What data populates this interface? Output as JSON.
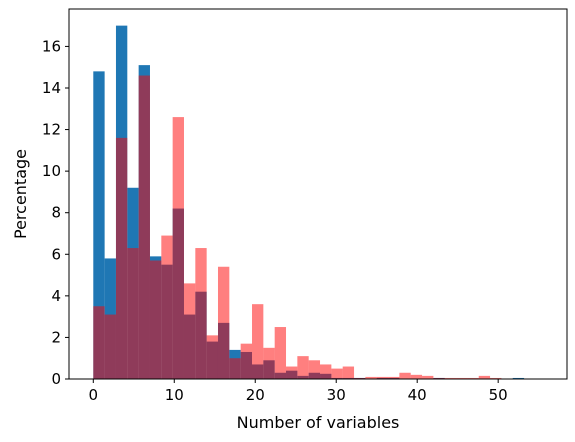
{
  "chart_data": {
    "type": "bar",
    "xlabel": "Number of variables",
    "ylabel": "Percentage",
    "xlim": [
      -3,
      58.5
    ],
    "ylim": [
      0,
      17.8
    ],
    "x_ticks": [
      0,
      10,
      20,
      30,
      40,
      50
    ],
    "y_ticks": [
      0,
      2,
      4,
      6,
      8,
      10,
      12,
      14,
      16
    ],
    "grid": false,
    "legend": "none",
    "bin_width": 1.4,
    "bin_start": 0,
    "series": [
      {
        "color": "#1f77b4",
        "opacity": 1,
        "values": [
          14.8,
          5.8,
          17.0,
          9.2,
          15.1,
          5.9,
          5.5,
          8.2,
          3.1,
          4.2,
          1.8,
          2.7,
          1.4,
          1.3,
          0.7,
          0.9,
          0.3,
          0.4,
          0.15,
          0.3,
          0.25,
          0.05,
          0.05,
          0.05,
          0.0,
          0.05,
          0.05,
          0.0,
          0.0,
          0.0,
          0.05,
          0.0,
          0.0,
          0.0,
          0.0,
          0.0,
          0.0,
          0.05
        ]
      },
      {
        "color": "#ff0000",
        "opacity": 0.5,
        "values": [
          3.5,
          3.1,
          11.6,
          6.3,
          14.6,
          5.7,
          6.9,
          12.6,
          4.6,
          6.3,
          2.1,
          5.4,
          1.0,
          1.7,
          3.6,
          1.5,
          2.5,
          0.6,
          1.1,
          0.9,
          0.7,
          0.5,
          0.6,
          0.05,
          0.1,
          0.1,
          0.1,
          0.3,
          0.2,
          0.15,
          0.05,
          0.05,
          0.05,
          0.05,
          0.15,
          0.05,
          0.0,
          0.0
        ]
      }
    ]
  }
}
